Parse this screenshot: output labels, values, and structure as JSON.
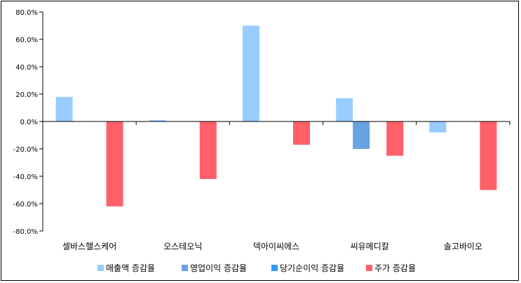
{
  "chart_data": {
    "type": "bar",
    "title": "",
    "xlabel": "",
    "ylabel": "",
    "ylim": [
      -0.8,
      0.8
    ],
    "yticks": [
      0.8,
      0.6,
      0.4,
      0.2,
      0.0,
      -0.2,
      -0.4,
      -0.6,
      -0.8
    ],
    "ytick_labels": [
      "80.0%",
      "60.0%",
      "40.0%",
      "20.0%",
      "0.0%",
      "-20.0%",
      "-40.0%",
      "-60.0%",
      "-80.0%"
    ],
    "categories": [
      "셀바스헬스케어",
      "오스테오닉",
      "덱아이씨에스",
      "씨유메디칼",
      "솔고바이오"
    ],
    "series": [
      {
        "name": "매출액 증감율",
        "color": "#99CCFF",
        "values": [
          0.18,
          0.01,
          0.7,
          0.17,
          -0.08
        ]
      },
      {
        "name": "영업이익 증감율",
        "color": "#66A3E0",
        "values": [
          null,
          null,
          null,
          -0.2,
          null
        ]
      },
      {
        "name": "당기순이익 증감율",
        "color": "#3399FF",
        "values": [
          null,
          null,
          null,
          null,
          null
        ]
      },
      {
        "name": "주가 증감율",
        "color": "#FF5F68",
        "values": [
          -0.62,
          -0.42,
          -0.17,
          -0.25,
          -0.5
        ]
      }
    ],
    "legend_position": "bottom",
    "grid": false
  }
}
